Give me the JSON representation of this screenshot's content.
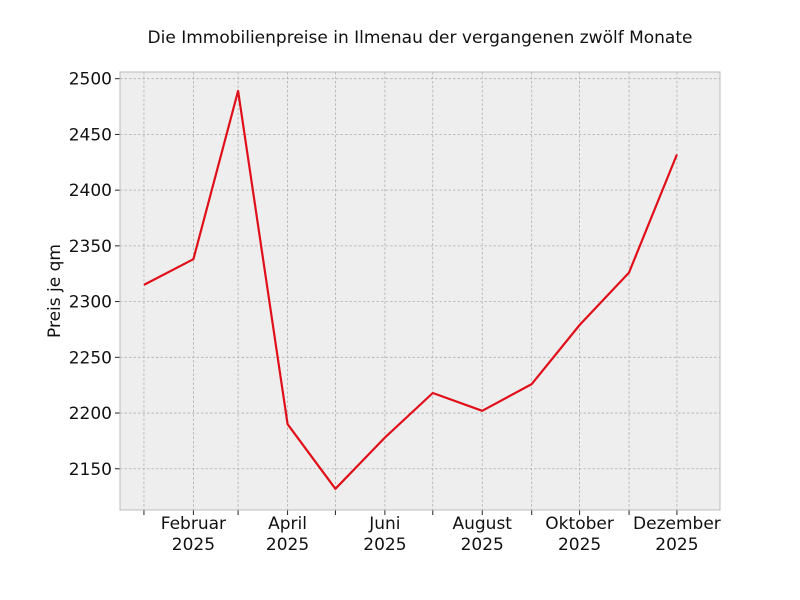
{
  "chart_data": {
    "type": "line",
    "title": "Die Immobilienpreise in Ilmenau der vergangenen zwölf Monate",
    "xlabel": "",
    "ylabel": "Preis je qm",
    "x": [
      "2025-01",
      "2025-02",
      "2025-03",
      "2025-04",
      "2025-05",
      "2025-06",
      "2025-07",
      "2025-08",
      "2025-09",
      "2025-10",
      "2025-11",
      "2025-12"
    ],
    "series": [
      {
        "values": [
          2315,
          2338,
          2489,
          2190,
          2132,
          2178,
          2218,
          2202,
          2226,
          2279,
          2326,
          2432
        ],
        "color": "#e0101a"
      }
    ],
    "x_ticks": [
      {
        "x": "2025-02",
        "label_month": "Februar",
        "label_year": "2025"
      },
      {
        "x": "2025-04",
        "label_month": "April",
        "label_year": "2025"
      },
      {
        "x": "2025-06",
        "label_month": "Juni",
        "label_year": "2025"
      },
      {
        "x": "2025-08",
        "label_month": "August",
        "label_year": "2025"
      },
      {
        "x": "2025-10",
        "label_month": "Oktober",
        "label_year": "2025"
      },
      {
        "x": "2025-12",
        "label_month": "Dezember",
        "label_year": "2025"
      }
    ],
    "x_minor_ticks": [
      "2025-01",
      "2025-03",
      "2025-05",
      "2025-07",
      "2025-09",
      "2025-11"
    ],
    "y_ticks": [
      2150,
      2200,
      2250,
      2300,
      2350,
      2400,
      2450,
      2500
    ],
    "ylim": [
      2113,
      2506
    ],
    "xlim": [
      "2024-12-17",
      "2025-12-28"
    ],
    "grid": true,
    "legend": "none",
    "background_color": "#eeeeee",
    "grid_color": "#b0b0b0"
  }
}
